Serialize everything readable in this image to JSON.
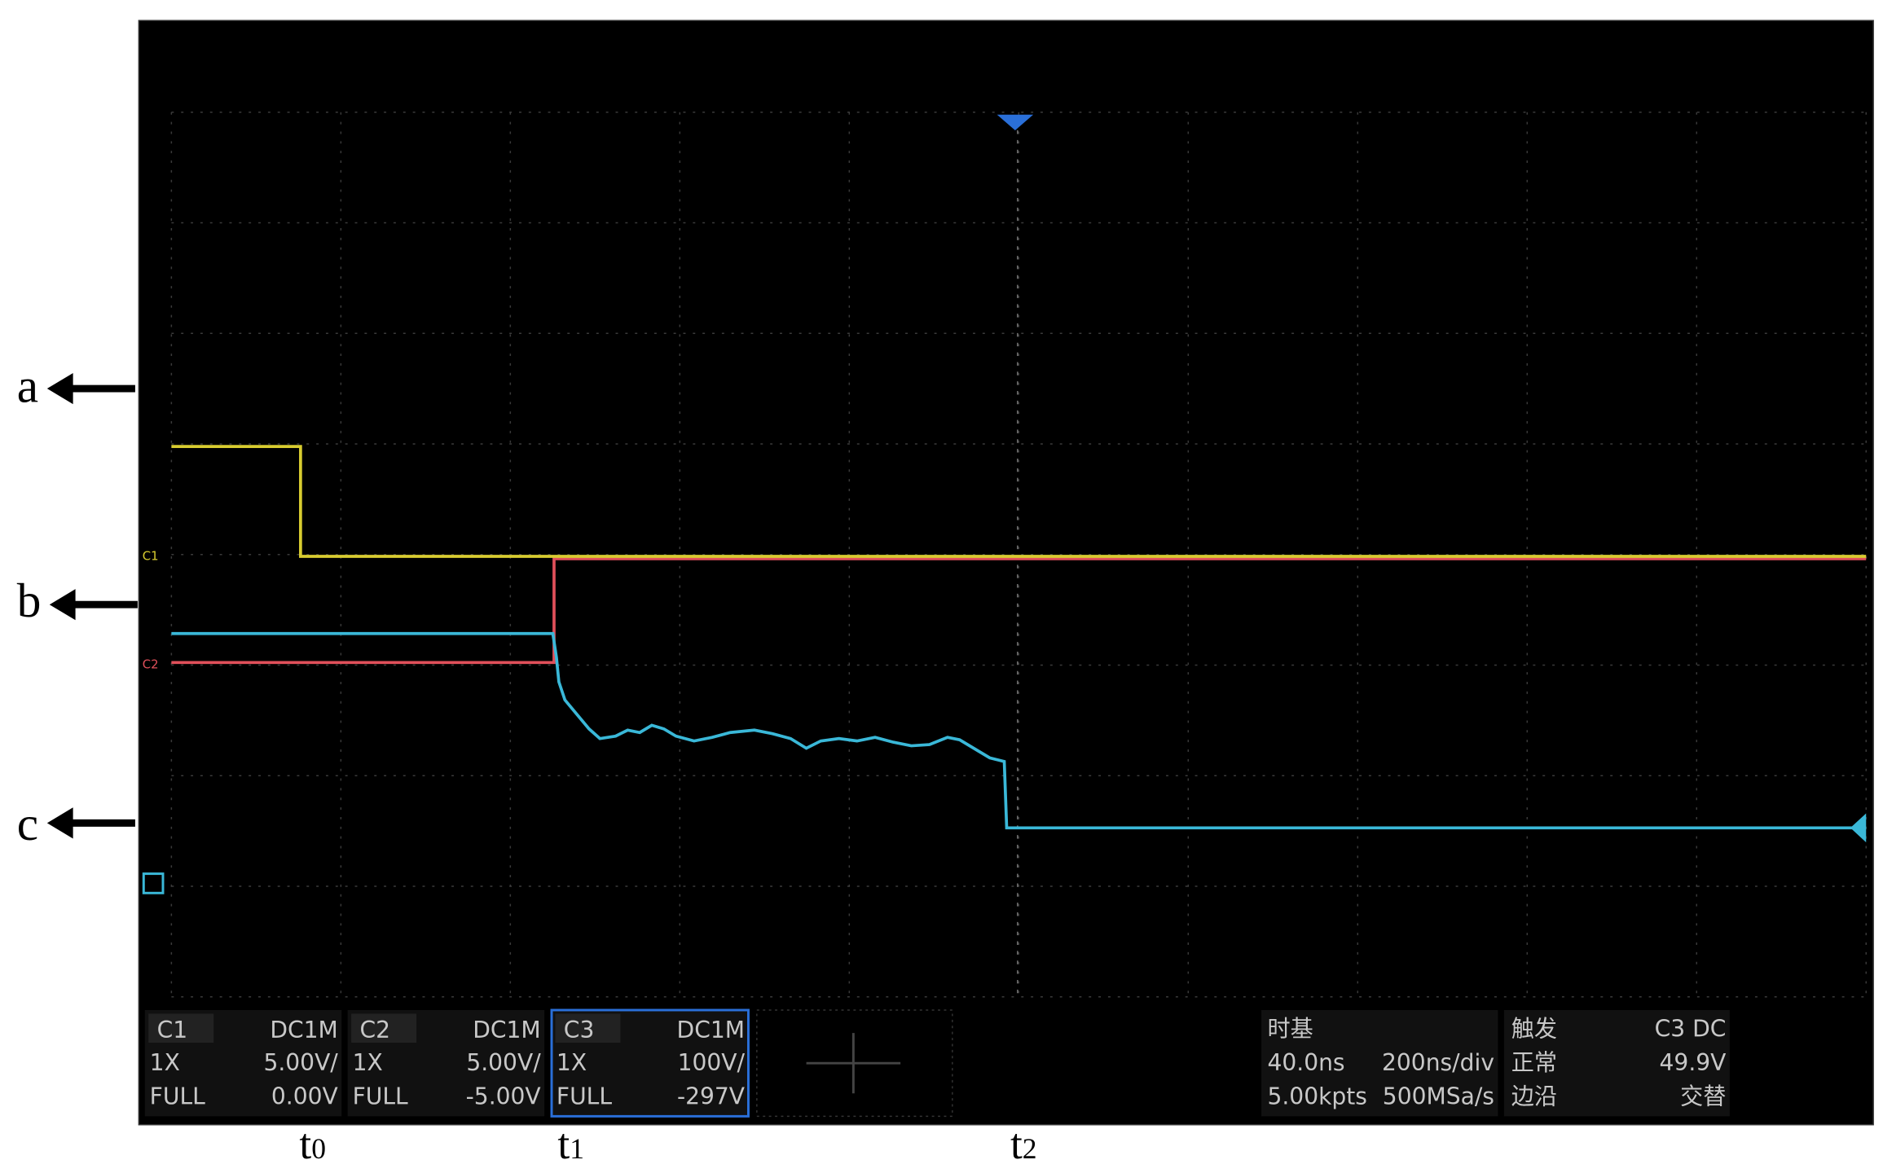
{
  "side_labels": [
    "a",
    "b",
    "c"
  ],
  "time_markers": [
    {
      "letter": "t",
      "subscript": "0"
    },
    {
      "letter": "t",
      "subscript": "1"
    },
    {
      "letter": "t",
      "subscript": "2"
    }
  ],
  "panel_time_marker": {
    "letter": "t",
    "subscript": "2"
  },
  "channel_markers": [
    "C1",
    "C2"
  ],
  "channels": [
    {
      "name": "C1",
      "coupling": "DC1M",
      "probe": "1X",
      "scale": "5.00V/",
      "bandwidth": "FULL",
      "offset": "0.00V"
    },
    {
      "name": "C2",
      "coupling": "DC1M",
      "probe": "1X",
      "scale": "5.00V/",
      "bandwidth": "FULL",
      "offset": "-5.00V"
    },
    {
      "name": "C3",
      "coupling": "DC1M",
      "probe": "1X",
      "scale": "100V/",
      "bandwidth": "FULL",
      "offset": "-297V"
    }
  ],
  "timebase": {
    "title": "时基",
    "delay": "40.0ns",
    "scale": "200ns/div",
    "memory": "5.00kpts",
    "sample_rate": "500MSa/s"
  },
  "trigger": {
    "title": "触发",
    "source": "C3 DC",
    "mode": "正常",
    "level": "49.9V",
    "type": "边沿",
    "slope": "交替"
  }
}
